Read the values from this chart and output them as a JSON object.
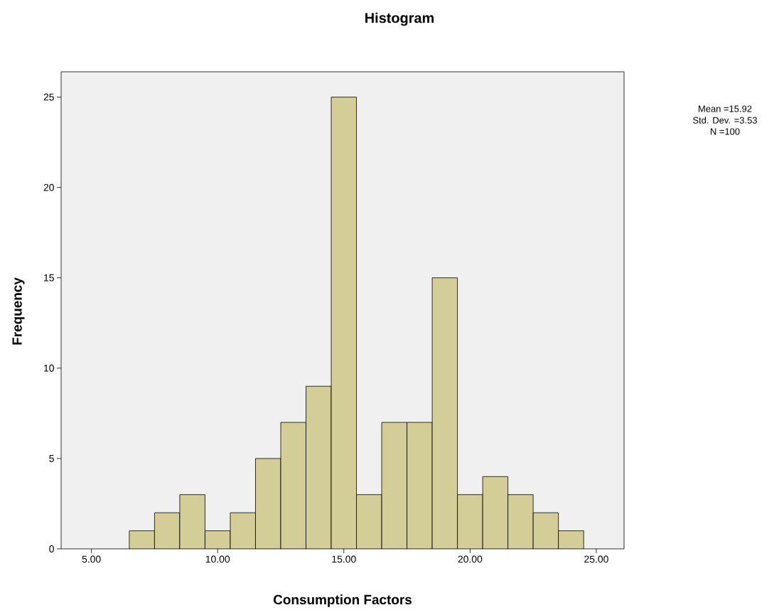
{
  "chart_data": {
    "type": "histogram",
    "title": "Histogram",
    "xlabel": "Consumption Factors",
    "ylabel": "Frequency",
    "bins": [
      6.5,
      7.5,
      8.5,
      9.5,
      10.5,
      11.5,
      12.5,
      13.5,
      14.5,
      15.5,
      16.5,
      17.5,
      18.5,
      19.5,
      20.5,
      21.5,
      22.5,
      23.5,
      24.5
    ],
    "values": [
      1,
      2,
      3,
      1,
      2,
      5,
      7,
      9,
      25,
      3,
      7,
      7,
      15,
      3,
      4,
      3,
      2,
      1
    ],
    "color": "#d3ce97",
    "xlim": [
      3.8,
      26.1
    ],
    "ylim": [
      0,
      26.4
    ],
    "xticks": [
      {
        "value": 5,
        "label": "5.00"
      },
      {
        "value": 10,
        "label": "10.00"
      },
      {
        "value": 15,
        "label": "15.00"
      },
      {
        "value": 20,
        "label": "20.00"
      },
      {
        "value": 25,
        "label": "25.00"
      }
    ],
    "yticks": [
      0,
      5,
      10,
      15,
      20,
      25
    ],
    "grid": false,
    "annotations": [
      "Mean =15.92",
      "Std. Dev. =3.53",
      "N =100"
    ]
  }
}
